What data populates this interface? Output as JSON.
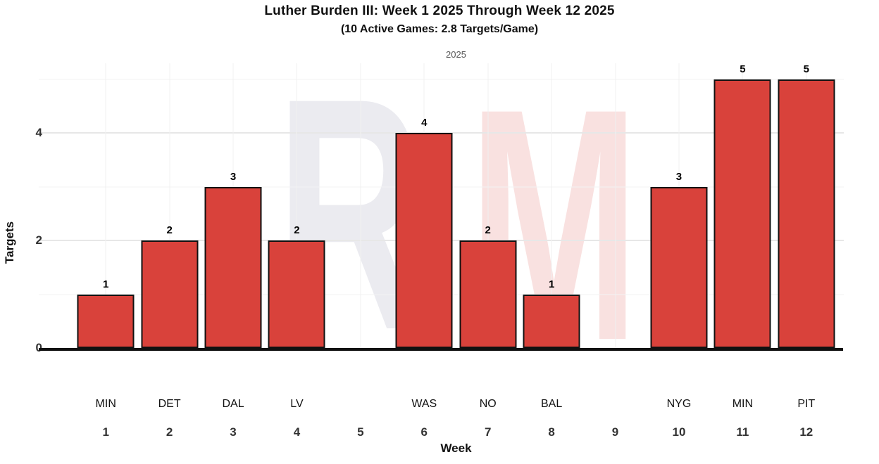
{
  "title": "Luther Burden III: Week 1 2025 Through Week 12 2025",
  "subtitle": "(10 Active Games: 2.8 Targets/Game)",
  "player": "Luther Burden III",
  "watermark": {
    "letter_gray": "R",
    "letter_red": "M"
  },
  "colors": {
    "bar_fill": "#d9423b",
    "bar_stroke": "#111111",
    "axis_line": "#111111",
    "watermark_gray": "#ebebf0",
    "watermark_red": "rgba(219,70,62,0.16)"
  },
  "chart_data": {
    "type": "bar",
    "title": "Luther Burden III: Week 1 2025 Through Week 12 2025",
    "subtitle": "(10 Active Games: 2.8 Targets/Game)",
    "facet_label": "2025",
    "xlabel": "Week",
    "ylabel": "Targets",
    "active_games": 10,
    "targets_per_game": 2.8,
    "ylim": [
      0,
      5.3
    ],
    "yticks": [
      0,
      2,
      4
    ],
    "minor_ticks": [
      1,
      3,
      5
    ],
    "grid": true,
    "legend": "none",
    "categories": [
      1,
      2,
      3,
      4,
      5,
      6,
      7,
      8,
      9,
      10,
      11,
      12
    ],
    "opponents": [
      "MIN",
      "DET",
      "DAL",
      "LV",
      null,
      "WAS",
      "NO",
      "BAL",
      null,
      "NYG",
      "MIN",
      "PIT"
    ],
    "values": [
      1,
      2,
      3,
      2,
      null,
      4,
      2,
      1,
      null,
      3,
      5,
      5
    ]
  }
}
